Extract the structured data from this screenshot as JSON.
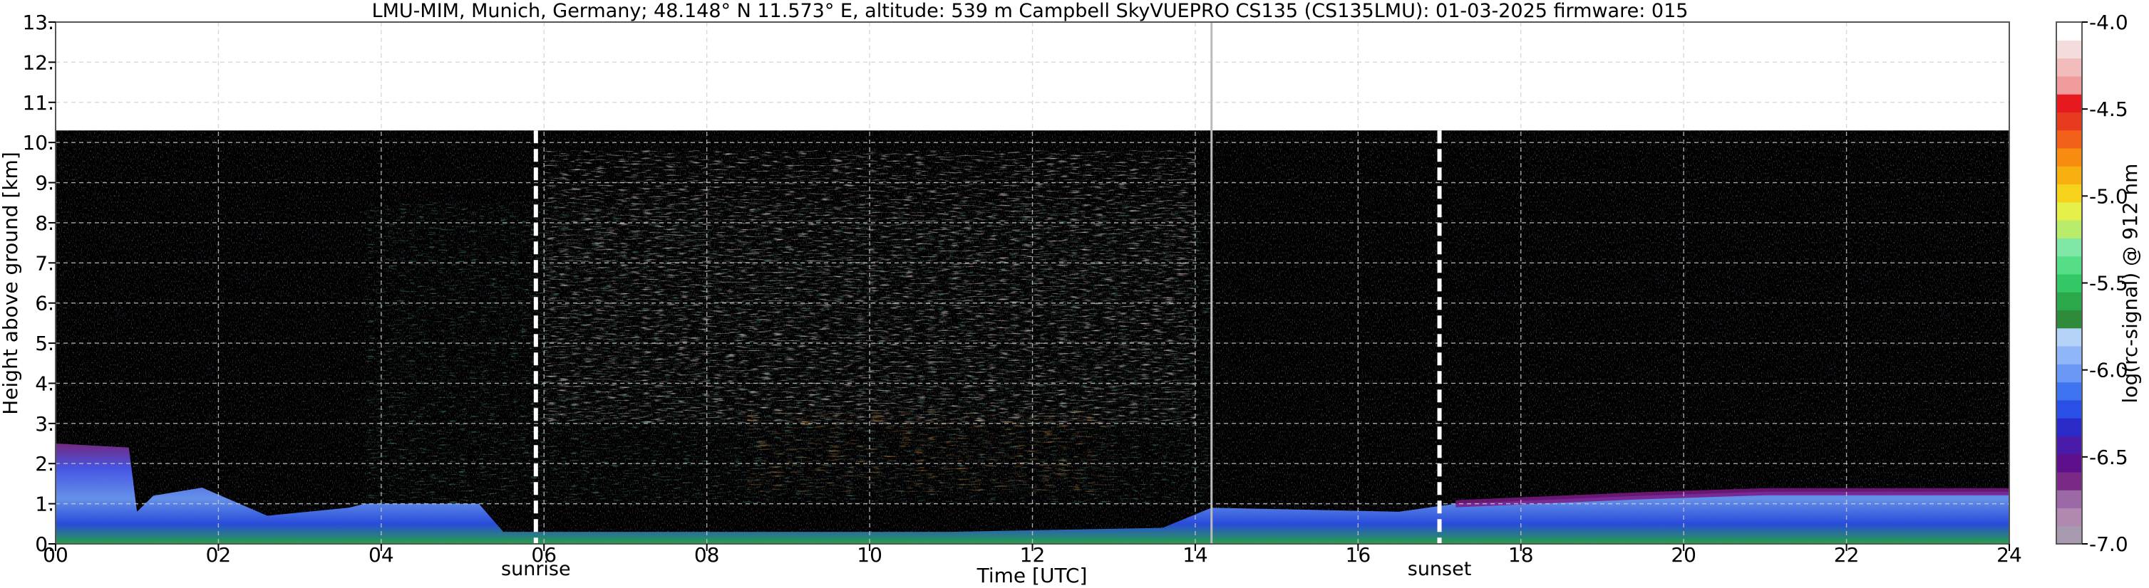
{
  "chart_data": {
    "type": "heatmap",
    "title": "LMU-MIM, Munich, Germany; 48.148° N 11.573° E, altitude: 539 m    Campbell SkyVUEPRO CS135 (CS135LMU): 01-03-2025    firmware: 015",
    "xlabel": "Time [UTC]",
    "ylabel": "Height above ground [km]",
    "xlim": [
      0,
      24
    ],
    "ylim": [
      0,
      13
    ],
    "x_ticks": [
      "00",
      "02",
      "04",
      "06",
      "08",
      "10",
      "12",
      "14",
      "16",
      "18",
      "20",
      "22",
      "24"
    ],
    "y_ticks": [
      "0.",
      "1.",
      "2.",
      "3.",
      "4.",
      "5.",
      "6.",
      "7.",
      "8.",
      "9.",
      "10.",
      "11.",
      "12.",
      "13."
    ],
    "grid": true,
    "data_top_km": 10.3,
    "colorbar": {
      "label": "log(rc-signal) @ 912 nm",
      "range": [
        -7.0,
        -4.0
      ],
      "ticks": [
        "-4.0",
        "-4.5",
        "-5.0",
        "-5.5",
        "-6.0",
        "-6.5",
        "-7.0"
      ],
      "colors": [
        "#a89aae",
        "#b088b0",
        "#9b6aa6",
        "#7a2a86",
        "#5e0f8c",
        "#4a1aa8",
        "#2a2ac8",
        "#2a4fe6",
        "#3f74f0",
        "#6a98f4",
        "#8fb6f8",
        "#b5d2f8",
        "#2e8b3a",
        "#2aa84a",
        "#33c766",
        "#55dd88",
        "#7fe8a6",
        "#b8ec6a",
        "#e6f04a",
        "#f6d21a",
        "#f8b010",
        "#f88c10",
        "#f2601a",
        "#e83a1e",
        "#e6191e",
        "#ef9b9b",
        "#f3bcbc",
        "#f4dcdc",
        "#ffffff"
      ]
    },
    "markers": [
      {
        "label": "sunrise",
        "x": 5.9
      },
      {
        "label": "sunset",
        "x": 17.0
      }
    ],
    "instrument_gap": {
      "x": 14.2
    },
    "boundary_layer_km": [
      [
        0.0,
        2.5
      ],
      [
        0.9,
        2.4
      ],
      [
        1.0,
        0.8
      ],
      [
        1.2,
        1.2
      ],
      [
        1.8,
        1.4
      ],
      [
        2.6,
        0.7
      ],
      [
        3.6,
        0.9
      ],
      [
        3.8,
        1.0
      ],
      [
        5.2,
        1.0
      ],
      [
        5.5,
        0.3
      ],
      [
        8.0,
        0.3
      ],
      [
        11.0,
        0.3
      ],
      [
        13.6,
        0.4
      ],
      [
        14.2,
        0.9
      ],
      [
        16.5,
        0.8
      ],
      [
        17.2,
        1.0
      ],
      [
        19.5,
        1.2
      ],
      [
        21.0,
        1.3
      ],
      [
        24.0,
        1.3
      ]
    ]
  }
}
